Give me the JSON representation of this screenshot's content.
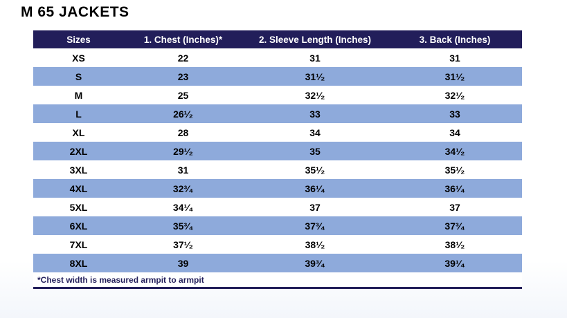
{
  "page_title": "M 65 JACKETS",
  "colors": {
    "header_bg": "#221e5a",
    "row_alt_bg": "#8eaadb",
    "header_text": "#ffffff",
    "body_text": "#000000"
  },
  "chart_data": {
    "type": "table",
    "title": "M 65 JACKETS",
    "columns": [
      "Sizes",
      "1. Chest (Inches)*",
      "2. Sleeve Length (Inches)",
      "3. Back (Inches)"
    ],
    "rows": [
      [
        "XS",
        "22",
        "31",
        "31"
      ],
      [
        "S",
        "23",
        "31¹⁄₂",
        "31¹⁄₂"
      ],
      [
        "M",
        "25",
        "32¹⁄₂",
        "32¹⁄₂"
      ],
      [
        "L",
        "26¹⁄₂",
        "33",
        "33"
      ],
      [
        "XL",
        "28",
        "34",
        "34"
      ],
      [
        "2XL",
        "29¹⁄₂",
        "35",
        "34¹⁄₂"
      ],
      [
        "3XL",
        "31",
        "35¹⁄₂",
        "35¹⁄₂"
      ],
      [
        "4XL",
        "32³⁄₄",
        "36¹⁄₄",
        "36¹⁄₄"
      ],
      [
        "5XL",
        "34¹⁄₄",
        "37",
        "37"
      ],
      [
        "6XL",
        "35³⁄₄",
        "37³⁄₄",
        "37³⁄₄"
      ],
      [
        "7XL",
        "37¹⁄₂",
        "38¹⁄₂",
        "38¹⁄₂"
      ],
      [
        "8XL",
        "39",
        "39³⁄₄",
        "39¹⁄₄"
      ]
    ],
    "footnote": "*Chest width is measured armpit to armpit"
  }
}
